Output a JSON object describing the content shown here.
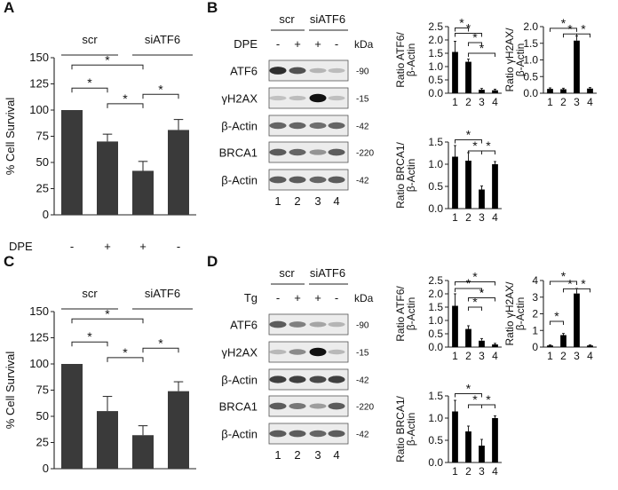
{
  "panels": {
    "A": {
      "label": "A",
      "groups": [
        "scr",
        "siATF6"
      ],
      "treat_label": "DPE",
      "signs": [
        "-",
        "+",
        "+",
        "-"
      ]
    },
    "B": {
      "label": "B",
      "groups": [
        "scr",
        "siATF6"
      ],
      "treat_label": "DPE",
      "signs": [
        "-",
        "+",
        "+",
        "-"
      ],
      "kda_label": "kDa",
      "rows": [
        {
          "name": "ATF6",
          "kda": "-90"
        },
        {
          "name": "γH2AX",
          "kda": "-15"
        },
        {
          "name": "β-Actin",
          "kda": "-42"
        },
        {
          "name": "BRCA1",
          "kda": "-220"
        },
        {
          "name": "β-Actin",
          "kda": "-42"
        }
      ],
      "lanes": [
        "1",
        "2",
        "3",
        "4"
      ]
    },
    "C": {
      "label": "C",
      "groups": [
        "scr",
        "siATF6"
      ],
      "treat_label": "Tg",
      "signs": [
        "-",
        "+",
        "+",
        "-"
      ]
    },
    "D": {
      "label": "D",
      "groups": [
        "scr",
        "siATF6"
      ],
      "treat_label": "Tg",
      "signs": [
        "-",
        "+",
        "+",
        "-"
      ],
      "kda_label": "kDa",
      "rows": [
        {
          "name": "ATF6",
          "kda": "-90"
        },
        {
          "name": "γH2AX",
          "kda": "-15"
        },
        {
          "name": "β-Actin",
          "kda": "-42"
        },
        {
          "name": "BRCA1",
          "kda": "-220"
        },
        {
          "name": "β-Actin",
          "kda": "-42"
        }
      ],
      "lanes": [
        "1",
        "2",
        "3",
        "4"
      ]
    }
  },
  "star": "*",
  "chart_data": [
    {
      "id": "A-survival",
      "type": "bar",
      "categories": [
        "",
        "",
        "",
        ""
      ],
      "values": [
        100,
        70,
        42,
        81
      ],
      "errors": [
        0,
        7,
        9,
        10
      ],
      "ylabel": "% Cell Survival",
      "ylim": [
        0,
        150
      ],
      "yticks": [
        "0",
        "25",
        "50",
        "75",
        "100",
        "125",
        "150"
      ],
      "color": "#3a3a3a"
    },
    {
      "id": "B-atf6",
      "type": "bar",
      "categories": [
        "1",
        "2",
        "3",
        "4"
      ],
      "values": [
        1.55,
        1.18,
        0.13,
        0.11
      ],
      "errors": [
        0.4,
        0.1,
        0.05,
        0.04
      ],
      "ylabel": "Ratio ATF6/ β-Actin",
      "ylim": [
        0,
        2.5
      ],
      "yticks": [
        "0.0",
        "0.5",
        "1.0",
        "1.5",
        "2.0",
        "2.5"
      ],
      "color": "#000000"
    },
    {
      "id": "B-h2ax",
      "type": "bar",
      "categories": [
        "1",
        "2",
        "3",
        "4"
      ],
      "values": [
        0.13,
        0.12,
        1.58,
        0.14
      ],
      "errors": [
        0.03,
        0.03,
        0.14,
        0.03
      ],
      "ylabel": "Ratio γH2AX/ β-Actin",
      "ylim": [
        0,
        2.0
      ],
      "yticks": [
        "0.0",
        "0.5",
        "1.0",
        "1.5",
        "2.0"
      ],
      "color": "#000000"
    },
    {
      "id": "B-brca1",
      "type": "bar",
      "categories": [
        "1",
        "2",
        "3",
        "4"
      ],
      "values": [
        1.17,
        1.08,
        0.43,
        1.0
      ],
      "errors": [
        0.25,
        0.18,
        0.08,
        0.06
      ],
      "ylabel": "Ratio BRCA1/ β-Actin",
      "ylim": [
        0,
        1.5
      ],
      "yticks": [
        "0.0",
        "0.5",
        "1.0",
        "1.5"
      ],
      "color": "#000000"
    },
    {
      "id": "C-survival",
      "type": "bar",
      "categories": [
        "",
        "",
        "",
        ""
      ],
      "values": [
        100,
        55,
        32,
        74
      ],
      "errors": [
        0,
        14,
        9,
        9
      ],
      "ylabel": "% Cell Survival",
      "ylim": [
        0,
        150
      ],
      "yticks": [
        "0",
        "25",
        "50",
        "75",
        "100",
        "125",
        "150"
      ],
      "color": "#3a3a3a"
    },
    {
      "id": "D-atf6",
      "type": "bar",
      "categories": [
        "1",
        "2",
        "3",
        "4"
      ],
      "values": [
        1.55,
        0.68,
        0.24,
        0.1
      ],
      "errors": [
        0.45,
        0.12,
        0.08,
        0.04
      ],
      "ylabel": "Ratio ATF6/ β-Actin",
      "ylim": [
        0,
        2.5
      ],
      "yticks": [
        "0.0",
        "0.5",
        "1.0",
        "1.5",
        "2.0",
        "2.5"
      ],
      "color": "#000000"
    },
    {
      "id": "D-h2ax",
      "type": "bar",
      "categories": [
        "1",
        "2",
        "3",
        "4"
      ],
      "values": [
        0.1,
        0.72,
        3.22,
        0.1
      ],
      "errors": [
        0.03,
        0.1,
        0.3,
        0.03
      ],
      "ylabel": "Ratio γH2AX/ β-Actin",
      "ylim": [
        0,
        4
      ],
      "yticks": [
        "0",
        "1",
        "2",
        "3",
        "4"
      ],
      "color": "#000000"
    },
    {
      "id": "D-brca1",
      "type": "bar",
      "categories": [
        "1",
        "2",
        "3",
        "4"
      ],
      "values": [
        1.15,
        0.7,
        0.38,
        1.0
      ],
      "errors": [
        0.25,
        0.12,
        0.14,
        0.05
      ],
      "ylabel": "Ratio BRCA1/ β-Actin",
      "ylim": [
        0,
        1.5
      ],
      "yticks": [
        "0.0",
        "0.5",
        "1.0",
        "1.5"
      ],
      "color": "#000000"
    }
  ]
}
